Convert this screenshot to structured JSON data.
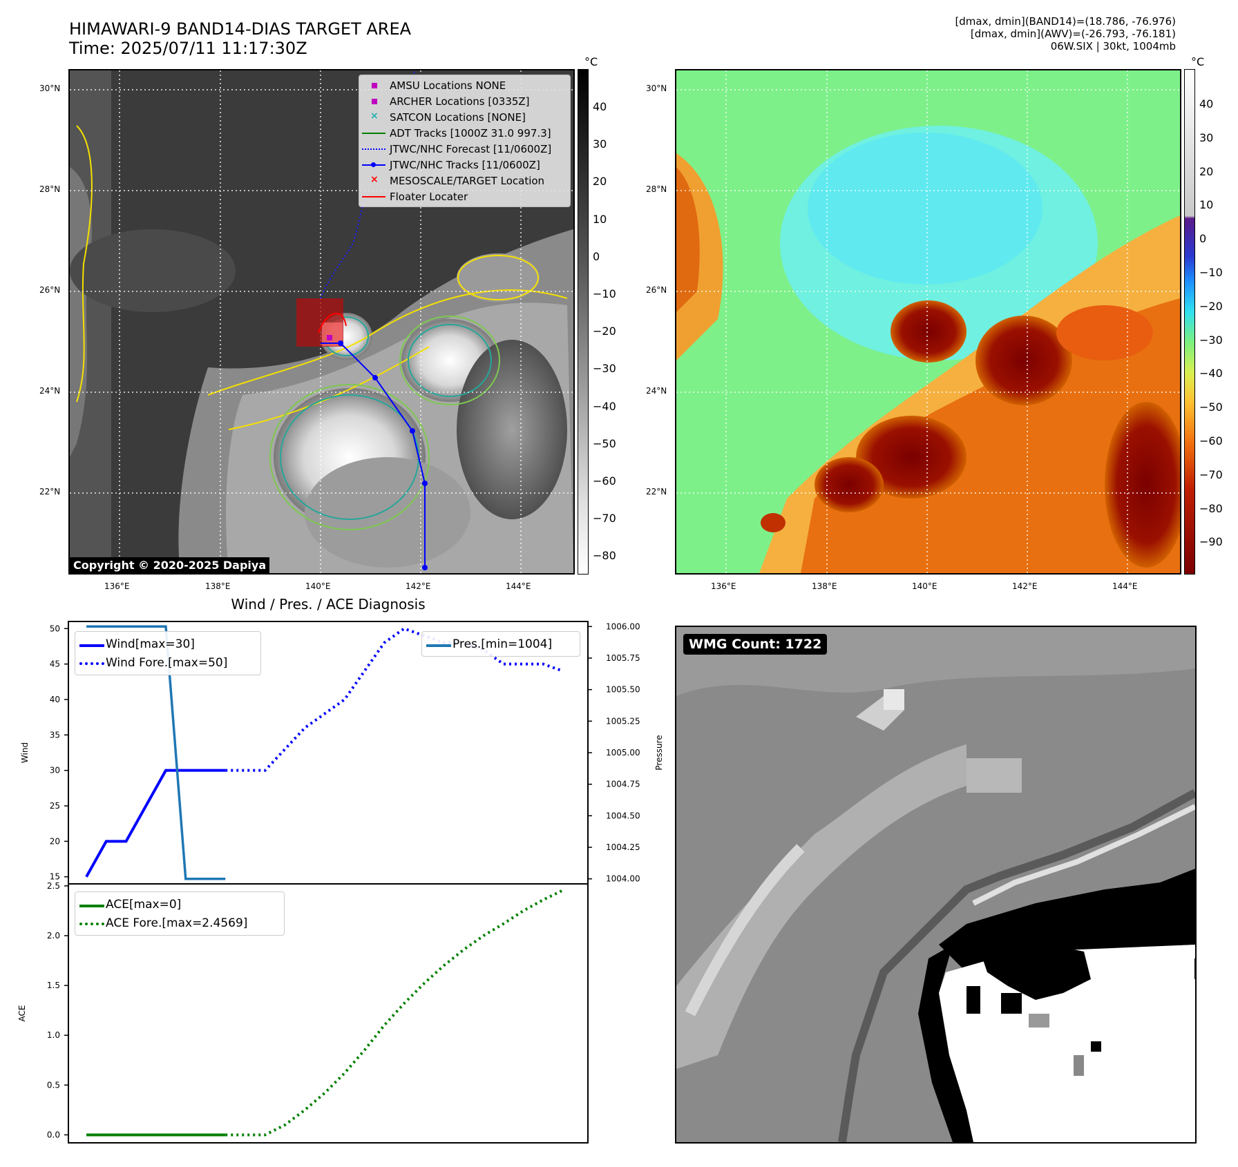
{
  "header": {
    "title_line1": "HIMAWARI-9 BAND14-DIAS TARGET AREA",
    "title_line2": "Time: 2025/07/11 11:17:30Z",
    "info_line1": "[dmax, dmin](BAND14)=(18.786, -76.976)",
    "info_line2": "[dmax, dmin](AWV)=(-26.793, -76.181)",
    "info_line3": "06W.SIX | 30kt, 1004mb"
  },
  "maps": {
    "lat_labels": [
      "30°N",
      "28°N",
      "26°N",
      "24°N",
      "22°N"
    ],
    "lon_labels": [
      "136°E",
      "138°E",
      "140°E",
      "142°E",
      "144°E"
    ],
    "copyright": "Copyright © 2020-2025 Dapiya",
    "unit": "°C"
  },
  "colorbar_band14": {
    "unit": "°C",
    "ticks": [
      "40",
      "30",
      "20",
      "10",
      "0",
      "−10",
      "−20",
      "−30",
      "−40",
      "−50",
      "−60",
      "−70",
      "−80"
    ]
  },
  "colorbar_awv": {
    "unit": "°C",
    "ticks": [
      "40",
      "30",
      "20",
      "10",
      "0",
      "−10",
      "−20",
      "−30",
      "−40",
      "−50",
      "−60",
      "−70",
      "−80",
      "−90"
    ]
  },
  "map_legend": [
    {
      "label": "AMSU Locations NONE",
      "marker": "square",
      "color": "#c000c0"
    },
    {
      "label": "ARCHER Locations [0335Z]",
      "marker": "square",
      "color": "#c000c0"
    },
    {
      "label": "SATCON Locations [NONE]",
      "marker": "x",
      "color": "#20b0b0"
    },
    {
      "label": "ADT Tracks [1000Z 31.0 997.3]",
      "marker": "line",
      "color": "#008000"
    },
    {
      "label": "JTWC/NHC Forecast [11/0600Z]",
      "marker": "dotted",
      "color": "#0000ff"
    },
    {
      "label": "JTWC/NHC Tracks [11/0600Z]",
      "marker": "line-dot",
      "color": "#0000ff"
    },
    {
      "label": "MESOSCALE/TARGET Location",
      "marker": "x",
      "color": "#ff0000"
    },
    {
      "label": "Floater Locater",
      "marker": "line",
      "color": "#ff0000"
    }
  ],
  "diagnosis": {
    "title": "Wind / Pres. / ACE Diagnosis",
    "wind_ylabel": "Wind",
    "pres_ylabel": "Pressure",
    "ace_ylabel": "ACE",
    "wind_legend": [
      "Wind[max=30]",
      "Wind Fore.[max=50]"
    ],
    "pres_legend": [
      "Pres.[min=1004]"
    ],
    "ace_legend": [
      "ACE[max=0]",
      "ACE Fore.[max=2.4569]"
    ]
  },
  "wmg": {
    "count_label": "WMG Count: 1722"
  },
  "chart_data": [
    {
      "type": "line",
      "title": "Wind / Pres. / ACE Diagnosis",
      "ylabel": "Wind",
      "ylim": [
        14,
        51
      ],
      "yticks": [
        15,
        20,
        25,
        30,
        35,
        40,
        45,
        50
      ],
      "x": [
        0,
        1,
        2,
        3,
        4,
        5,
        6,
        7,
        8,
        9,
        10,
        11,
        12,
        13,
        14,
        15,
        16,
        17,
        18,
        19,
        20,
        21,
        22,
        23,
        24
      ],
      "series": [
        {
          "name": "Wind[max=30]",
          "style": "solid",
          "color": "#0000ff",
          "x": [
            0,
            1,
            2,
            3,
            4,
            5,
            6,
            7
          ],
          "values": [
            15,
            20,
            20,
            25,
            30,
            30,
            30,
            30
          ]
        },
        {
          "name": "Wind Fore.[max=50]",
          "style": "dotted",
          "color": "#0000ff",
          "x": [
            7,
            8,
            9,
            10,
            11,
            12,
            13,
            14,
            15,
            16,
            17,
            18,
            19,
            20,
            21,
            22,
            23,
            24
          ],
          "values": [
            30,
            30,
            30,
            33,
            36,
            38,
            40,
            44,
            48,
            50,
            49,
            48,
            48,
            47,
            45,
            45,
            45,
            44
          ]
        }
      ]
    },
    {
      "type": "line",
      "ylabel": "Pressure",
      "ylim": [
        1003.96,
        1006.04
      ],
      "yticks": [
        "1004.00",
        "1004.25",
        "1004.50",
        "1004.75",
        "1005.00",
        "1005.25",
        "1005.50",
        "1005.75",
        "1006.00"
      ],
      "series": [
        {
          "name": "Pres.[min=1004]",
          "style": "solid",
          "color": "#1f77b4",
          "x": [
            0,
            1,
            2,
            3,
            4,
            5,
            6,
            7
          ],
          "values": [
            1006.0,
            1006.0,
            1006.0,
            1006.0,
            1006.0,
            1004.0,
            1004.0,
            1004.0
          ]
        }
      ]
    },
    {
      "type": "line",
      "ylabel": "ACE",
      "ylim": [
        -0.08,
        2.52
      ],
      "yticks": [
        "0.0",
        "0.5",
        "1.0",
        "1.5",
        "2.0",
        "2.5"
      ],
      "series": [
        {
          "name": "ACE[max=0]",
          "style": "solid",
          "color": "#008000",
          "x": [
            0,
            1,
            2,
            3,
            4,
            5,
            6,
            7
          ],
          "values": [
            0,
            0,
            0,
            0,
            0,
            0,
            0,
            0
          ]
        },
        {
          "name": "ACE Fore.[max=2.4569]",
          "style": "dotted",
          "color": "#008000",
          "x": [
            7,
            8,
            9,
            10,
            11,
            12,
            13,
            14,
            15,
            16,
            17,
            18,
            19,
            20,
            21,
            22,
            23,
            24
          ],
          "values": [
            0,
            0,
            0,
            0.1,
            0.25,
            0.42,
            0.62,
            0.85,
            1.1,
            1.32,
            1.52,
            1.7,
            1.86,
            2.0,
            2.12,
            2.25,
            2.36,
            2.4569
          ]
        }
      ]
    }
  ]
}
